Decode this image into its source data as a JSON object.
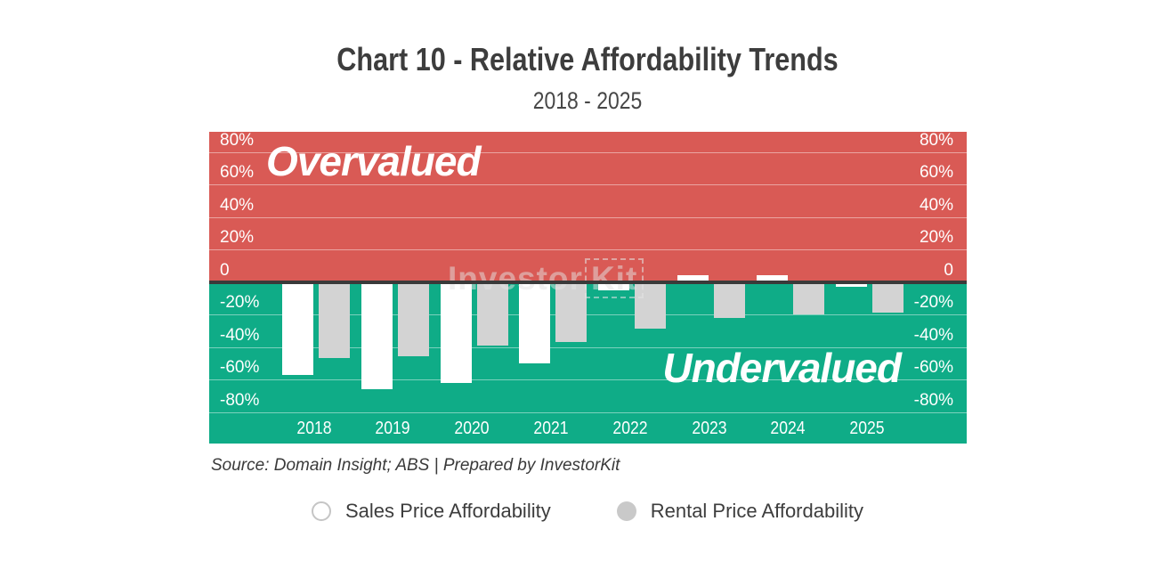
{
  "title": "Chart 10 - Relative Affordability Trends",
  "subtitle": "2018 - 2025",
  "source_note": "Source: Domain Insight; ABS | Prepared by InvestorKit",
  "watermark": {
    "part1": "Investor",
    "part2": "Kit"
  },
  "zones": {
    "overvalued_label": "Overvalued",
    "undervalued_label": "Undervalued"
  },
  "colors": {
    "overvalued_red": "#D95A55",
    "undervalued_green": "#0FAC87",
    "zero_line_dark": "#3a3a3a",
    "sales_bar_white": "#FFFFFF",
    "rental_bar_gray": "#D3D3D3",
    "text_dark_gray": "#3d3d3d"
  },
  "chart_data": {
    "type": "bar",
    "title": "Chart 10 - Relative Affordability Trends",
    "subtitle": "2018 - 2025",
    "categories": [
      "2018",
      "2019",
      "2020",
      "2021",
      "2022",
      "2023",
      "2024",
      "2025"
    ],
    "series": [
      {
        "name": "Sales Price Affordability",
        "color": "#FFFFFF",
        "values": [
          -57,
          -66,
          -62,
          -50,
          -5,
          4,
          4,
          -3
        ]
      },
      {
        "name": "Rental Price Affordability",
        "color": "#D3D3D3",
        "values": [
          -47,
          -46,
          -39,
          -37,
          -29,
          -22,
          -20,
          -19
        ]
      }
    ],
    "unit": "%",
    "yticks": [
      80,
      60,
      40,
      20,
      0,
      -20,
      -40,
      -60,
      -80
    ],
    "ytick_labels": [
      "80%",
      "60%",
      "40%",
      "20%",
      "0",
      "-20%",
      "-40%",
      "-60%",
      "-80%"
    ],
    "ylim": [
      -99,
      92
    ],
    "grid": true,
    "dual_axis_labels": true,
    "legend_position": "bottom",
    "annotations": [
      "Overvalued",
      "Undervalued"
    ]
  }
}
